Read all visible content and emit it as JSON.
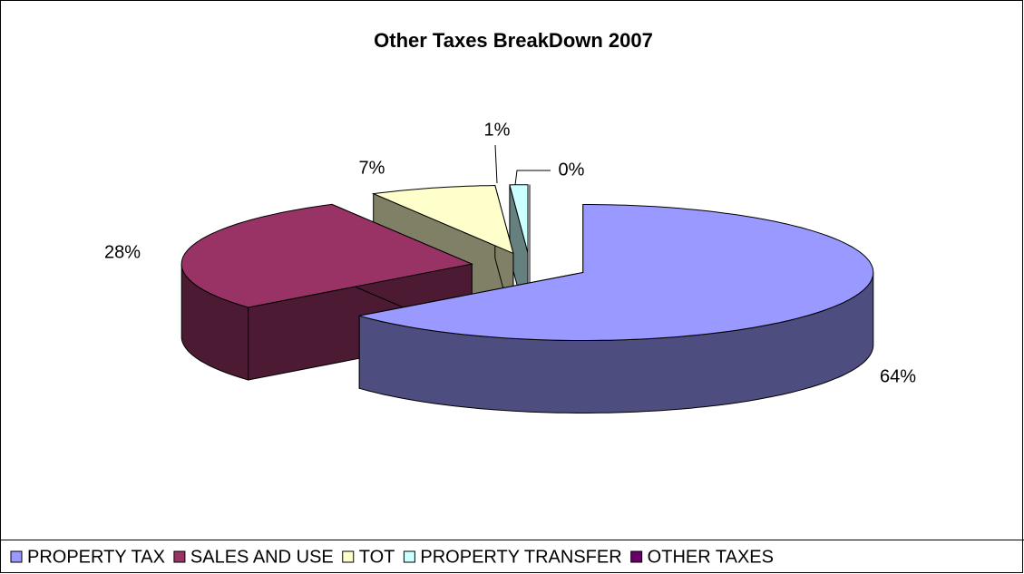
{
  "chart_data": {
    "type": "pie3d",
    "title": "Other Taxes BreakDown 2007",
    "categories": [
      "PROPERTY TAX",
      "SALES AND USE",
      "TOT",
      "PROPERTY TRANSFER",
      "OTHER TAXES"
    ],
    "values": [
      64,
      28,
      7,
      1,
      0
    ],
    "value_labels": [
      "64%",
      "28%",
      "7%",
      "1%",
      "0%"
    ],
    "colors": [
      "#9999ff",
      "#993366",
      "#ffffcc",
      "#ccffff",
      "#660066"
    ],
    "legend": "bottom"
  }
}
